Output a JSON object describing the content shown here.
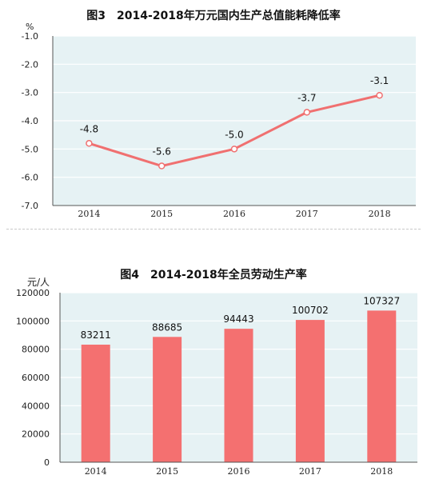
{
  "chart_data": [
    {
      "type": "line",
      "title": "图3　2014-2018年万元国内生产总值能耗降低率",
      "unit": "%",
      "categories": [
        "2014",
        "2015",
        "2016",
        "2017",
        "2018"
      ],
      "values": [
        -4.8,
        -5.6,
        -5.0,
        -3.7,
        -3.1
      ],
      "value_labels": [
        "-4.8",
        "-5.6",
        "-5.0",
        "-3.7",
        "-3.1"
      ],
      "y_ticks": [
        "-1.0",
        "-2.0",
        "-3.0",
        "-4.0",
        "-5.0",
        "-6.0",
        "-7.0"
      ],
      "ylim": [
        -7.0,
        -1.0
      ],
      "grid": true,
      "colors": {
        "line": "#f07070",
        "plot_bg": "#e6f2f4",
        "grid": "#ffffff"
      }
    },
    {
      "type": "bar",
      "title": "图4　2014-2018年全员劳动生产率",
      "unit": "元/人",
      "categories": [
        "2014",
        "2015",
        "2016",
        "2017",
        "2018"
      ],
      "values": [
        83211,
        88685,
        94443,
        100702,
        107327
      ],
      "value_labels": [
        "83211",
        "88685",
        "94443",
        "100702",
        "107327"
      ],
      "y_ticks": [
        "0",
        "20000",
        "40000",
        "60000",
        "80000",
        "100000",
        "120000"
      ],
      "ylim": [
        0,
        120000
      ],
      "grid": true,
      "colors": {
        "bar": "#f47070",
        "plot_bg": "#e6f2f4",
        "grid": "#ffffff"
      }
    }
  ]
}
